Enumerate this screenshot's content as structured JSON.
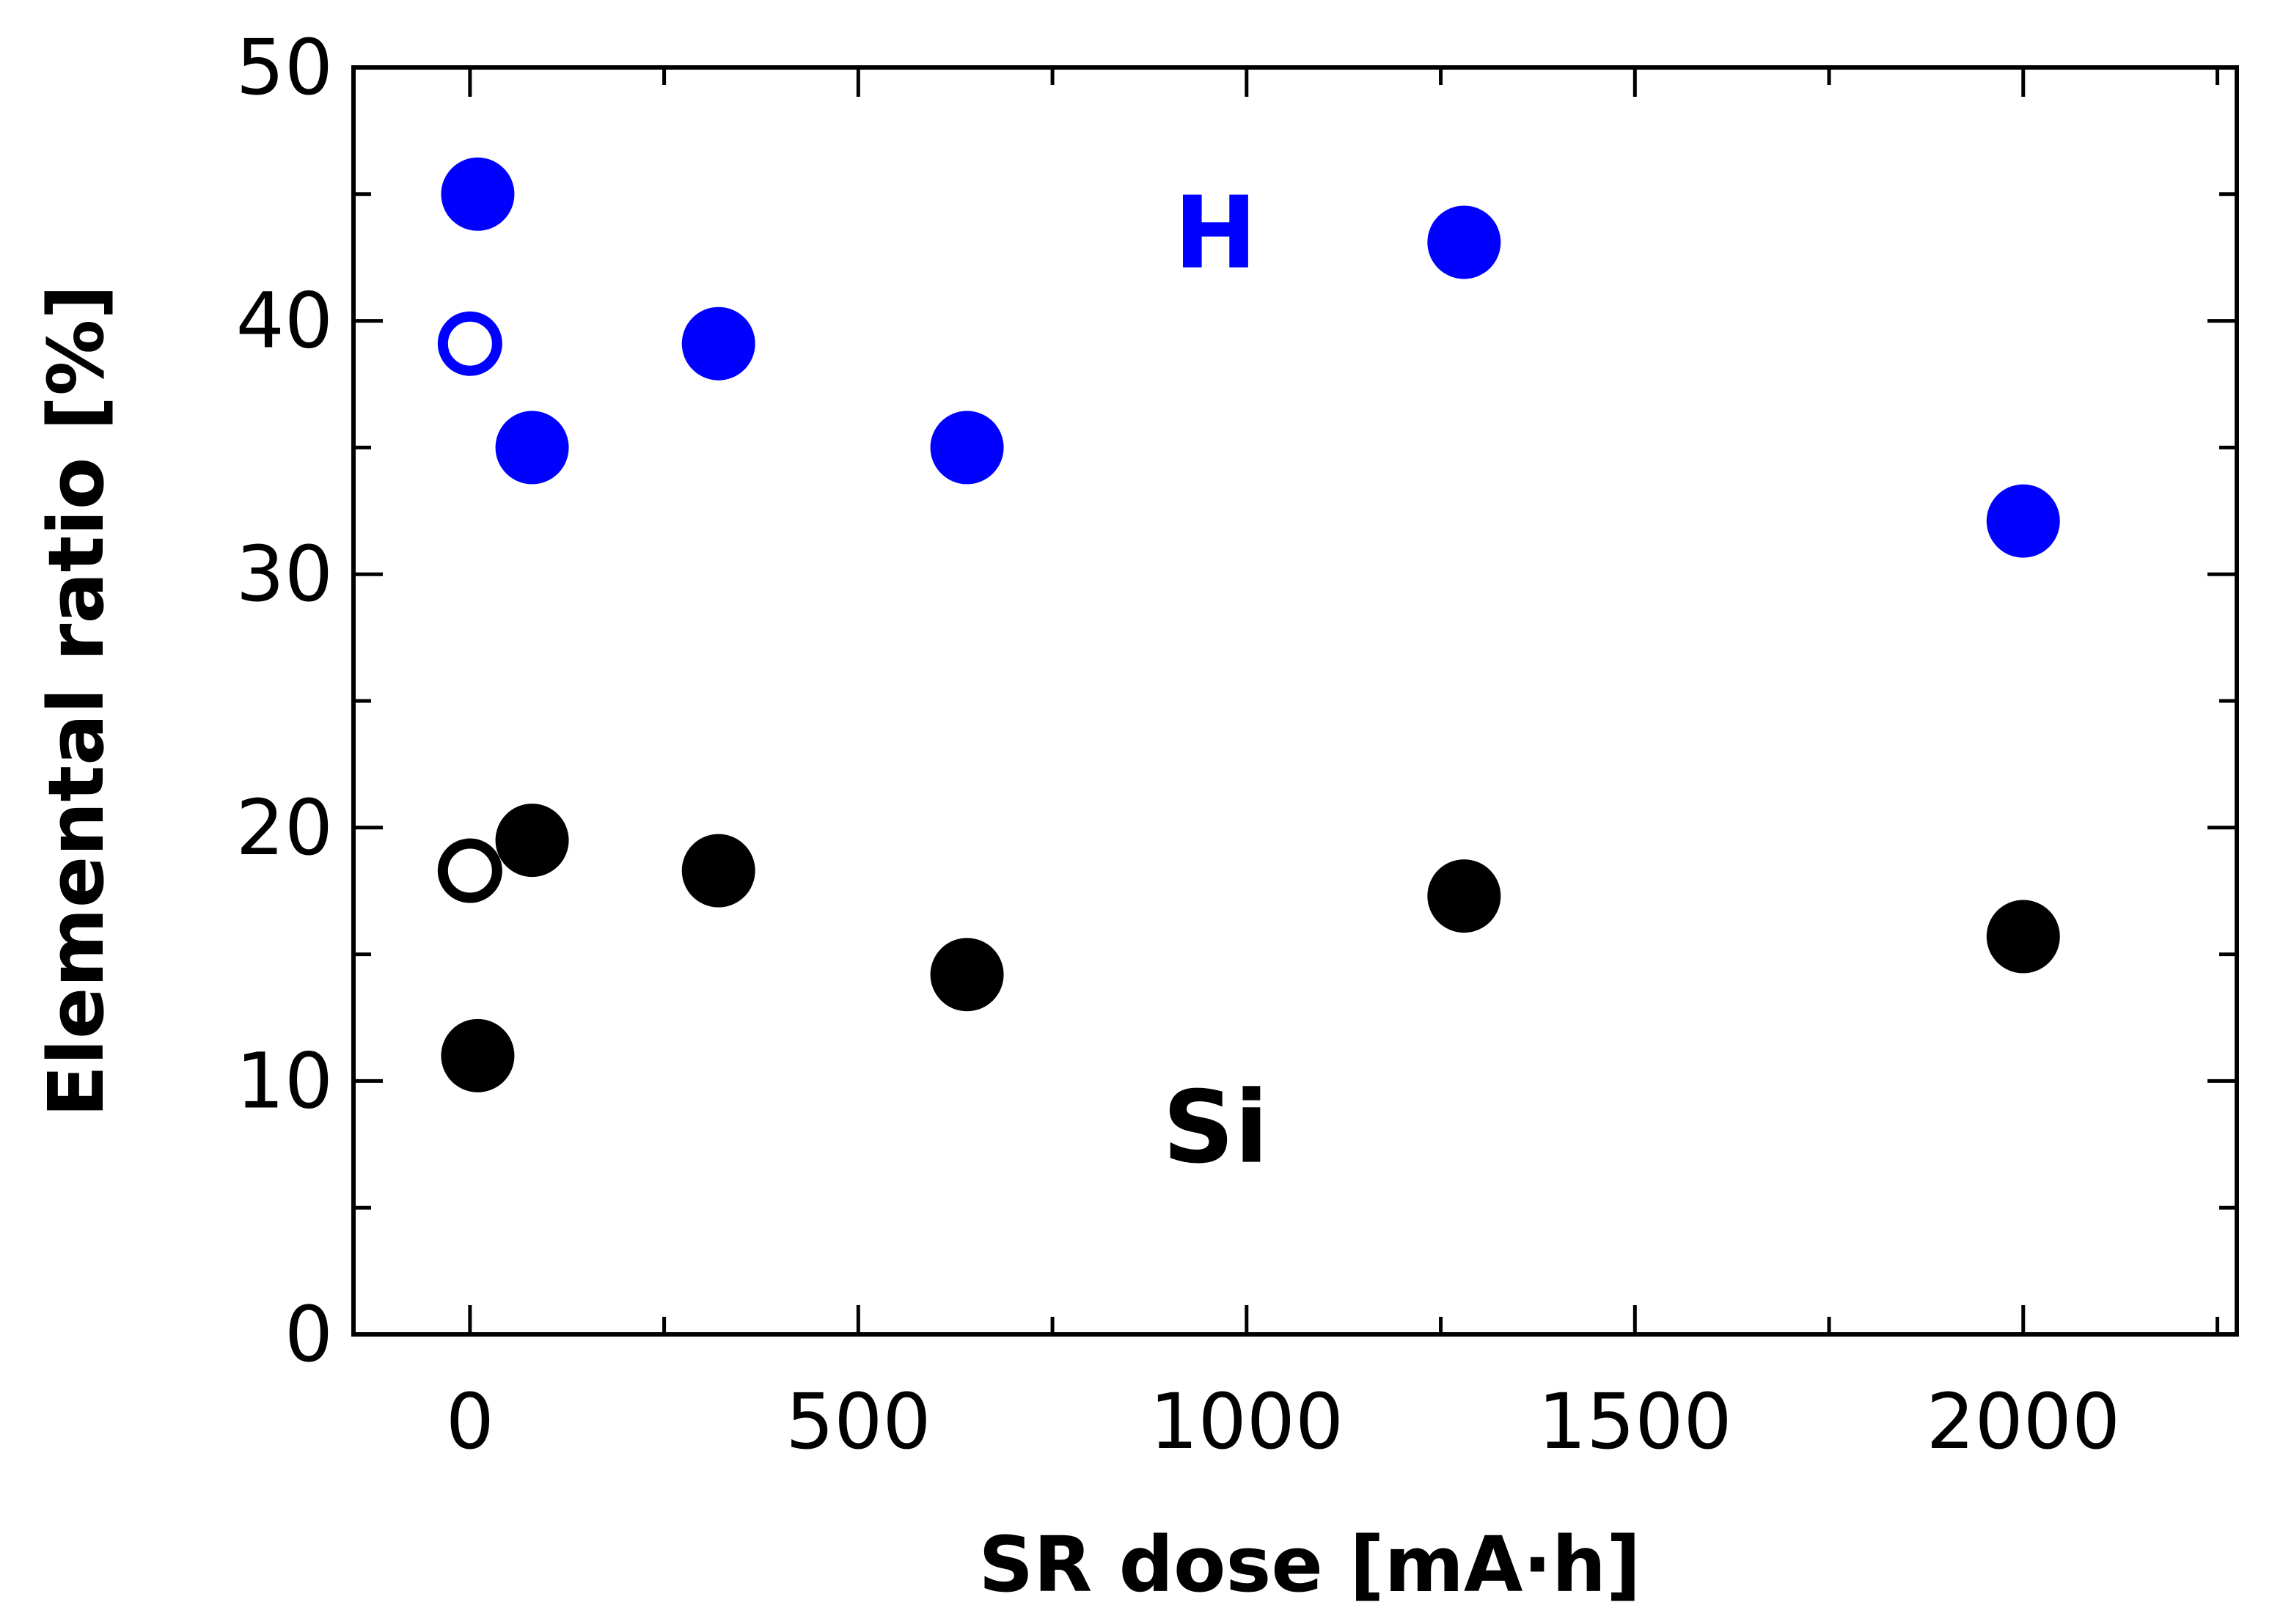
{
  "chart_data": {
    "type": "scatter",
    "title": "",
    "xlabel": "SR dose [mA·h]",
    "ylabel": "Elemental ratio [%]",
    "xlim": [
      -150,
      2275
    ],
    "ylim": [
      0,
      50
    ],
    "x_ticks": [
      0,
      500,
      1000,
      1500,
      2000
    ],
    "x_tick_labels": [
      "0",
      "500",
      "1000",
      "1500",
      "2000"
    ],
    "y_ticks": [
      0,
      10,
      20,
      30,
      40,
      50
    ],
    "y_tick_labels": [
      "0",
      "10",
      "20",
      "30",
      "40",
      "50"
    ],
    "grid": false,
    "legend": "none",
    "series": [
      {
        "element": "H",
        "color": "#0000ff",
        "filled_points": [
          {
            "x": 10,
            "y": 45.0
          },
          {
            "x": 80,
            "y": 35.0
          },
          {
            "x": 320,
            "y": 39.1
          },
          {
            "x": 640,
            "y": 35.0
          },
          {
            "x": 1280,
            "y": 43.1
          },
          {
            "x": 2000,
            "y": 32.1
          }
        ],
        "open_points": [
          {
            "x": 0,
            "y": 39.1
          }
        ]
      },
      {
        "element": "Si",
        "color": "#000000",
        "filled_points": [
          {
            "x": 10,
            "y": 11.0
          },
          {
            "x": 80,
            "y": 19.5
          },
          {
            "x": 320,
            "y": 18.3
          },
          {
            "x": 640,
            "y": 14.2
          },
          {
            "x": 1280,
            "y": 17.3
          },
          {
            "x": 2000,
            "y": 15.7
          }
        ],
        "open_points": [
          {
            "x": 0,
            "y": 18.3
          }
        ]
      }
    ],
    "annotations": [
      {
        "text": "H",
        "x": 960,
        "y": 43.5,
        "color": "#0000ff"
      },
      {
        "text": "Si",
        "x": 960,
        "y": 8.2,
        "color": "#000000"
      }
    ]
  }
}
